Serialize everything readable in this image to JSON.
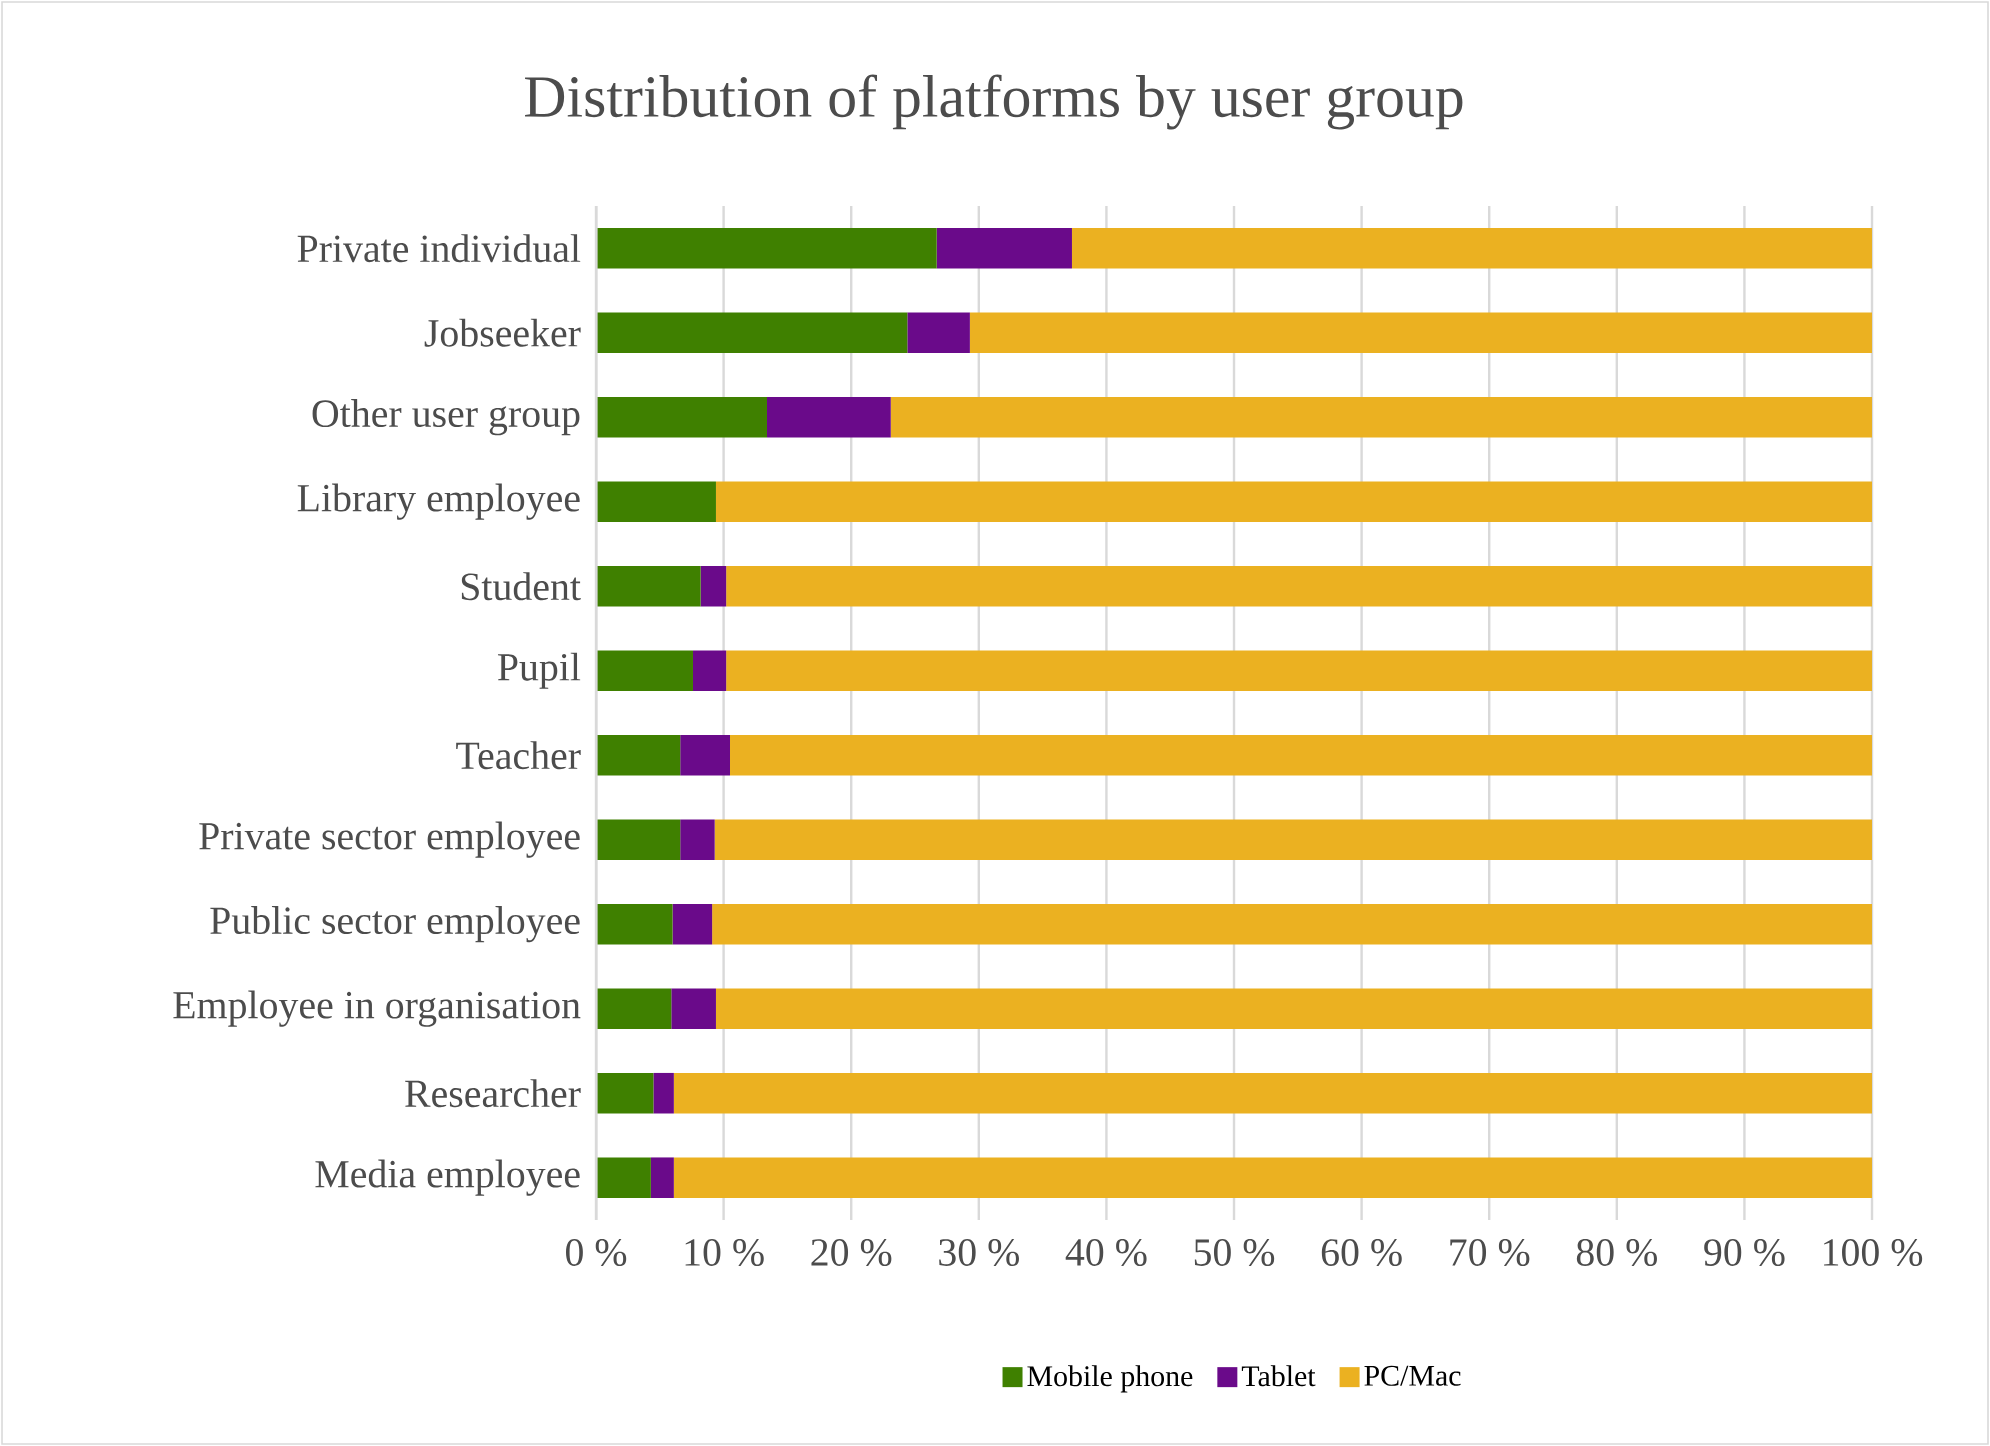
{
  "chart_data": {
    "type": "bar",
    "orientation": "horizontal",
    "stacked": true,
    "title": "Distribution of platforms by user group",
    "categories": [
      "Private individual",
      "Jobseeker",
      "Other user group",
      "Library employee",
      "Student",
      "Pupil",
      "Teacher",
      "Private sector employee",
      "Public sector employee",
      "Employee in organisation",
      "Researcher",
      "Media employee"
    ],
    "series": [
      {
        "name": "Mobile phone",
        "color": "#3f8000",
        "values": [
          26.7,
          24.4,
          13.4,
          9.4,
          8.2,
          7.6,
          6.6,
          6.6,
          6.0,
          5.9,
          4.5,
          4.3
        ]
      },
      {
        "name": "Tablet",
        "color": "#6a0a8a",
        "values": [
          10.6,
          4.9,
          9.7,
          0,
          2.0,
          2.6,
          3.9,
          2.7,
          3.1,
          3.5,
          1.6,
          1.8
        ]
      },
      {
        "name": "PC/Mac",
        "color": "#ebb121",
        "values": [
          62.7,
          70.7,
          76.9,
          90.6,
          89.8,
          89.8,
          89.5,
          90.7,
          90.9,
          90.6,
          93.9,
          93.9
        ]
      }
    ],
    "xlim": [
      0,
      100
    ],
    "xticks": [
      {
        "value": 0,
        "label": "0 %"
      },
      {
        "value": 10,
        "label": "10 %"
      },
      {
        "value": 20,
        "label": "20 %"
      },
      {
        "value": 30,
        "label": "30 %"
      },
      {
        "value": 40,
        "label": "40 %"
      },
      {
        "value": 50,
        "label": "50 %"
      },
      {
        "value": 60,
        "label": "60 %"
      },
      {
        "value": 70,
        "label": "70 %"
      },
      {
        "value": 80,
        "label": "80 %"
      },
      {
        "value": 90,
        "label": "90 %"
      },
      {
        "value": 100,
        "label": "100 %"
      }
    ],
    "grid": "x",
    "legend": "bottom"
  }
}
